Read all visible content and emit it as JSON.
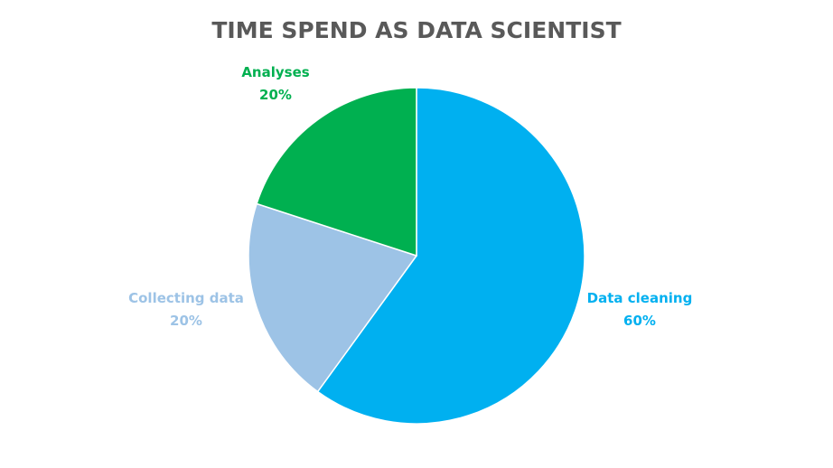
{
  "chart_data": {
    "type": "pie",
    "title": "TIME SPEND AS DATA SCIENTIST",
    "slices": [
      {
        "label": "Data cleaning",
        "value": 60,
        "value_label": "60%",
        "color": "#00B0F0"
      },
      {
        "label": "Collecting data",
        "value": 20,
        "value_label": "20%",
        "color": "#9DC3E6"
      },
      {
        "label": "Analyses",
        "value": 20,
        "value_label": "20%",
        "color": "#00B050"
      }
    ],
    "start_angle_deg": 0,
    "direction": "clockwise",
    "labels_outside": true,
    "legend": "none"
  }
}
